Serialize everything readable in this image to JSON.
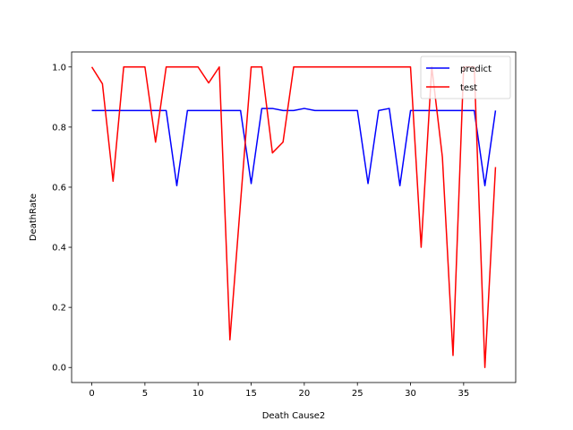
{
  "chart_data": {
    "type": "line",
    "title": "",
    "xlabel": "Death Cause2",
    "ylabel": "DeathRate",
    "xlim": [
      -1.9,
      39.9
    ],
    "ylim": [
      -0.05,
      1.05
    ],
    "x_ticks": [
      0,
      5,
      10,
      15,
      20,
      25,
      30,
      35
    ],
    "y_ticks": [
      0.0,
      0.2,
      0.4,
      0.6,
      0.8,
      1.0
    ],
    "x_tick_labels": [
      "0",
      "5",
      "10",
      "15",
      "20",
      "25",
      "30",
      "35"
    ],
    "y_tick_labels": [
      "0.0",
      "0.2",
      "0.4",
      "0.6",
      "0.8",
      "1.0"
    ],
    "grid": false,
    "legend_position": "top-right",
    "x": [
      0,
      1,
      2,
      3,
      4,
      5,
      6,
      7,
      8,
      9,
      10,
      11,
      12,
      13,
      14,
      15,
      16,
      17,
      18,
      19,
      20,
      21,
      22,
      23,
      24,
      25,
      26,
      27,
      28,
      29,
      30,
      31,
      32,
      33,
      34,
      35,
      36,
      37,
      38
    ],
    "series": [
      {
        "name": "predict",
        "color": "#0000ff",
        "values": [
          0.855,
          0.855,
          0.855,
          0.855,
          0.855,
          0.855,
          0.855,
          0.855,
          0.605,
          0.855,
          0.855,
          0.855,
          0.855,
          0.855,
          0.855,
          0.612,
          0.862,
          0.862,
          0.855,
          0.855,
          0.862,
          0.855,
          0.855,
          0.855,
          0.855,
          0.855,
          0.612,
          0.855,
          0.862,
          0.605,
          0.855,
          0.855,
          0.855,
          0.855,
          0.855,
          0.855,
          0.855,
          0.605,
          0.855
        ]
      },
      {
        "name": "test",
        "color": "#ff0000",
        "values": [
          1.0,
          0.944,
          0.62,
          1.0,
          1.0,
          1.0,
          0.75,
          1.0,
          1.0,
          1.0,
          1.0,
          0.947,
          1.0,
          0.092,
          0.55,
          1.0,
          1.0,
          0.714,
          0.75,
          1.0,
          1.0,
          1.0,
          1.0,
          1.0,
          1.0,
          1.0,
          1.0,
          1.0,
          1.0,
          1.0,
          1.0,
          0.4,
          1.0,
          0.7,
          0.04,
          1.0,
          1.0,
          0.0,
          0.667
        ]
      }
    ]
  }
}
